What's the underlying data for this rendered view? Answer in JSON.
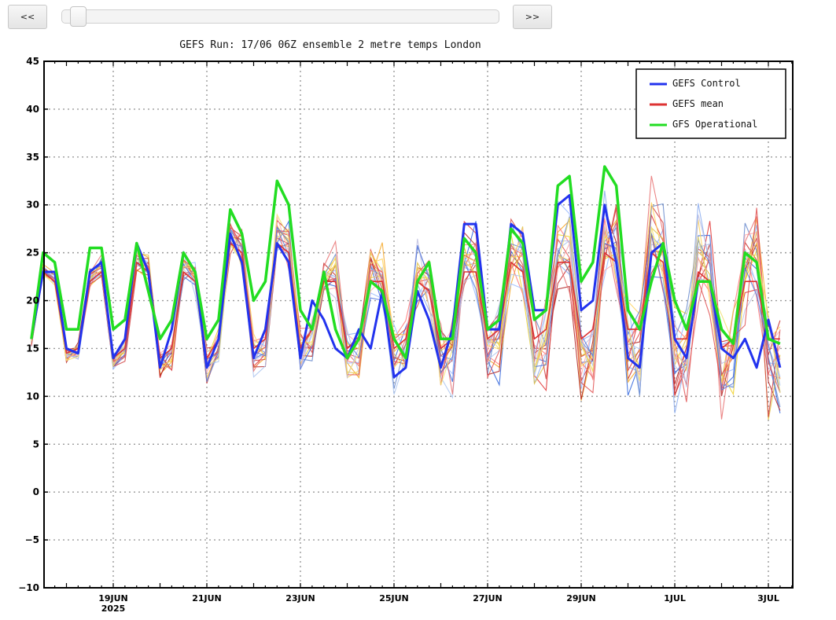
{
  "controls": {
    "prev_label": "<<",
    "next_label": ">>",
    "slider_value": 0.02
  },
  "chart_data": {
    "type": "line",
    "title": "GEFS Run: 17/06 06Z ensemble 2 metre temps London",
    "xlabel": "",
    "ylabel": "",
    "ylim": [
      -10,
      45
    ],
    "yticks": [
      -10,
      -5,
      0,
      5,
      10,
      15,
      20,
      25,
      30,
      35,
      40,
      45
    ],
    "xlim": [
      "17JUN 06Z",
      "3JUL 18Z"
    ],
    "xticks": [
      {
        "label": "19JUN",
        "sublabel": "2025",
        "time": "19JUN 00Z"
      },
      {
        "label": "21JUN",
        "time": "21JUN 00Z"
      },
      {
        "label": "23JUN",
        "time": "23JUN 00Z"
      },
      {
        "label": "25JUN",
        "time": "25JUN 00Z"
      },
      {
        "label": "27JUN",
        "time": "27JUN 00Z"
      },
      {
        "label": "29JUN",
        "time": "29JUN 00Z"
      },
      {
        "label": "1JUL",
        "time": "1JUL 00Z"
      },
      {
        "label": "3JUL",
        "time": "3JUL 00Z"
      }
    ],
    "grid": true,
    "legend_position": "top-right",
    "time_step": "6-hourly from 17JUN 06Z",
    "series": [
      {
        "name": "GEFS Control",
        "color": "#2233ee",
        "values": [
          16,
          23,
          23,
          15,
          14.5,
          23,
          24,
          14,
          16,
          26,
          23,
          13,
          17,
          25,
          23,
          13,
          16,
          27,
          24,
          14,
          17,
          26,
          24,
          14,
          20,
          18,
          15,
          14,
          17,
          15,
          21,
          12,
          13,
          21,
          18,
          13,
          17,
          28,
          28,
          17,
          17,
          28,
          27,
          19,
          19,
          30,
          31,
          19,
          20,
          30,
          24,
          14,
          13,
          25,
          26,
          16,
          14,
          22,
          22,
          15,
          14,
          16,
          13,
          18,
          13
        ]
      },
      {
        "name": "GEFS mean",
        "color": "#dd3333",
        "values": [
          16,
          23,
          22,
          14.5,
          15,
          22,
          23,
          14,
          15,
          24,
          23,
          14,
          15,
          23,
          22,
          14,
          16,
          26,
          25,
          15,
          16,
          26,
          25,
          15,
          17,
          22,
          22,
          15,
          16,
          22,
          22,
          15,
          16,
          22,
          21,
          15,
          16,
          23,
          23,
          16,
          17,
          24,
          23,
          16,
          17,
          24,
          24,
          16,
          17,
          25,
          24,
          17,
          17,
          25,
          24,
          16,
          16,
          23,
          22,
          15,
          16,
          22,
          22,
          16,
          16
        ]
      },
      {
        "name": "GFS Operational",
        "color": "#22dd22",
        "values": [
          16,
          25,
          24,
          17,
          17,
          25.5,
          25.5,
          17,
          18,
          26,
          21,
          16,
          18,
          25,
          23,
          16,
          18,
          29.5,
          27,
          20,
          22,
          32.5,
          30,
          19,
          17,
          23,
          17,
          14,
          16,
          22,
          21,
          16,
          14,
          22,
          24,
          16,
          16,
          26.5,
          25,
          17,
          18,
          27.5,
          26,
          18,
          19,
          32,
          33,
          22,
          24,
          34,
          32,
          19,
          17,
          22,
          26,
          20,
          17,
          22,
          22,
          17,
          15.5,
          25,
          24,
          16,
          15.5
        ]
      }
    ],
    "ensemble_note": "Thin coloured lines are individual ensemble members"
  }
}
